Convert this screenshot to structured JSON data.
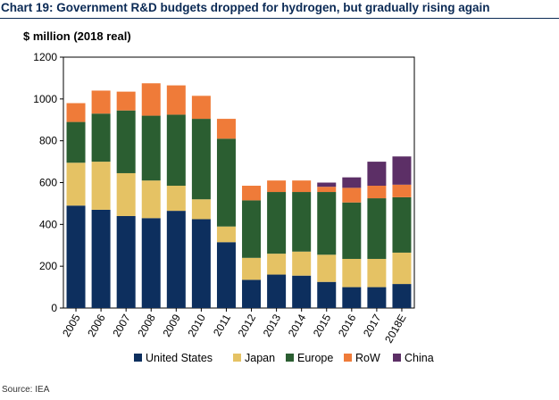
{
  "title": "Chart 19: Government R&D budgets dropped for hydrogen, but gradually rising again",
  "source": "Source: IEA",
  "chart_data": {
    "type": "bar",
    "stacked": true,
    "ylabel": "$ million (2018 real)",
    "ylim": [
      0,
      1200
    ],
    "yticks": [
      0,
      200,
      400,
      600,
      800,
      1000,
      1200
    ],
    "categories": [
      "2005",
      "2006",
      "2007",
      "2008",
      "2009",
      "2010",
      "2011",
      "2012",
      "2013",
      "2014",
      "2015",
      "2016",
      "2017",
      "2018E"
    ],
    "series": [
      {
        "name": "United States",
        "color": "#0d2f5e",
        "values": [
          490,
          470,
          440,
          430,
          465,
          425,
          315,
          135,
          160,
          155,
          125,
          100,
          100,
          115
        ]
      },
      {
        "name": "Japan",
        "color": "#e5c264",
        "values": [
          205,
          230,
          205,
          180,
          120,
          95,
          75,
          105,
          100,
          115,
          130,
          135,
          135,
          150
        ]
      },
      {
        "name": "Europe",
        "color": "#2b5e31",
        "values": [
          195,
          230,
          300,
          310,
          340,
          385,
          420,
          275,
          295,
          285,
          300,
          270,
          290,
          265
        ]
      },
      {
        "name": "RoW",
        "color": "#ef7b39",
        "values": [
          90,
          110,
          90,
          155,
          140,
          110,
          95,
          70,
          55,
          55,
          25,
          70,
          60,
          60
        ]
      },
      {
        "name": "China",
        "color": "#5c2f66",
        "values": [
          0,
          0,
          0,
          0,
          0,
          0,
          0,
          0,
          0,
          0,
          20,
          50,
          115,
          135
        ]
      }
    ],
    "legend_position": "bottom",
    "grid": false
  }
}
